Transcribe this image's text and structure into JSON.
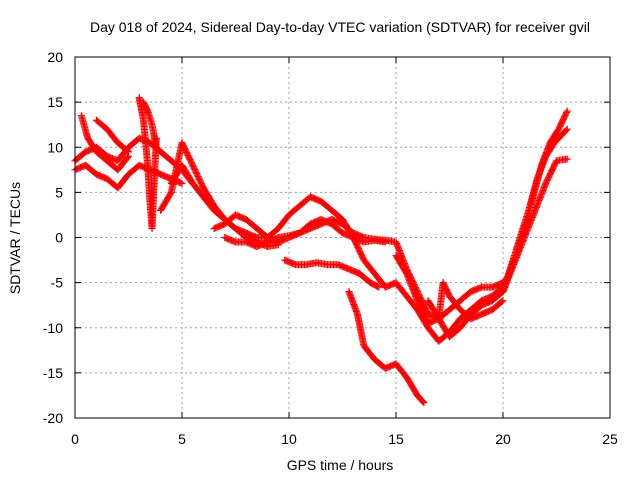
{
  "chart_data": {
    "type": "scatter",
    "title": "Day 018 of 2024, Sidereal Day-to-day VTEC variation (SDTVAR) for receiver gvil",
    "xlabel": "GPS time / hours",
    "ylabel": "SDTVAR / TECUs",
    "xlim": [
      0,
      25
    ],
    "ylim": [
      -20,
      20
    ],
    "xticks": [
      0,
      5,
      10,
      15,
      20,
      25
    ],
    "yticks": [
      -20,
      -15,
      -10,
      -5,
      0,
      5,
      10,
      15,
      20
    ],
    "grid": true,
    "marker": "+",
    "color": "#ff0000",
    "series": [
      {
        "x": [
          0.0,
          0.5,
          1.0,
          1.5,
          2.0,
          2.5,
          3.0,
          3.5,
          4.0,
          4.5,
          5.0,
          5.5
        ],
        "y": [
          8.5,
          9.5,
          10.0,
          9.0,
          8.5,
          10.0,
          11.0,
          10.5,
          9.5,
          8.5,
          7.5,
          6.0
        ]
      },
      {
        "x": [
          0.0,
          0.5,
          1.0,
          1.5,
          2.0,
          2.5,
          3.0,
          3.5,
          4.0,
          4.5,
          5.0
        ],
        "y": [
          7.5,
          8.0,
          7.0,
          6.5,
          5.5,
          7.0,
          8.0,
          7.5,
          7.0,
          6.5,
          6.0
        ]
      },
      {
        "x": [
          0.3,
          0.6,
          1.0,
          1.5,
          2.0,
          2.5
        ],
        "y": [
          13.5,
          11.0,
          9.5,
          8.5,
          7.5,
          9.0
        ]
      },
      {
        "x": [
          1.0,
          1.5,
          2.0,
          2.5
        ],
        "y": [
          13.0,
          12.0,
          10.5,
          9.5
        ]
      },
      {
        "x": [
          3.0,
          3.2,
          3.4,
          3.5,
          3.6,
          3.7,
          3.8
        ],
        "y": [
          15.5,
          13.0,
          8.0,
          4.0,
          1.0,
          6.0,
          11.0
        ]
      },
      {
        "x": [
          3.2,
          3.4,
          3.6,
          3.8
        ],
        "y": [
          15.0,
          14.0,
          12.5,
          10.0
        ]
      },
      {
        "x": [
          4.0,
          4.5,
          5.0,
          5.5,
          6.0,
          6.5,
          7.0,
          7.5,
          8.0,
          8.5,
          9.0,
          9.5
        ],
        "y": [
          3.0,
          5.0,
          10.5,
          8.0,
          5.5,
          3.5,
          2.0,
          1.0,
          0.0,
          -0.5,
          -1.0,
          -0.8
        ]
      },
      {
        "x": [
          4.5,
          5.0,
          5.5,
          6.0,
          6.5,
          7.0,
          7.5,
          8.0,
          8.5,
          9.0,
          9.5,
          10.0,
          10.5,
          11.0,
          11.5,
          12.0,
          12.5,
          13.0,
          13.5,
          14.0,
          14.5,
          15.0,
          15.5,
          16.0,
          16.5,
          17.0,
          17.5,
          18.0,
          18.5,
          19.0,
          19.5,
          20.0
        ],
        "y": [
          6.0,
          8.0,
          6.0,
          4.5,
          3.0,
          2.0,
          1.0,
          0.5,
          0.0,
          0.0,
          1.0,
          2.5,
          3.5,
          4.5,
          4.0,
          3.0,
          2.0,
          0.0,
          -2.5,
          -4.0,
          -5.5,
          -5.0,
          -6.5,
          -8.0,
          -10.0,
          -11.5,
          -10.5,
          -9.0,
          -8.0,
          -7.0,
          -6.5,
          -5.5
        ]
      },
      {
        "x": [
          6.5,
          7.0,
          7.5,
          8.0,
          8.5,
          9.0,
          9.5,
          10.0,
          10.5,
          11.0,
          11.5,
          12.0,
          12.5,
          13.0,
          13.5,
          14.0,
          14.5,
          15.0,
          15.5,
          16.0,
          16.5,
          17.0,
          17.5,
          18.0,
          18.5,
          19.0,
          19.5,
          20.0
        ],
        "y": [
          1.0,
          1.5,
          2.5,
          2.0,
          1.0,
          0.0,
          -0.5,
          0.0,
          0.5,
          1.0,
          1.5,
          2.0,
          1.5,
          0.5,
          0.0,
          -0.2,
          -0.3,
          -0.5,
          -3.5,
          -6.0,
          -8.5,
          -9.0,
          -8.0,
          -7.0,
          -6.0,
          -5.5,
          -5.5,
          -5.0
        ]
      },
      {
        "x": [
          7.0,
          7.5,
          8.0,
          8.5,
          9.0,
          9.5,
          10.0,
          10.5,
          11.0,
          11.5,
          12.0,
          12.5,
          13.0,
          13.5,
          14.0,
          14.5
        ],
        "y": [
          0.0,
          -0.5,
          -0.5,
          -1.0,
          -0.5,
          0.0,
          0.2,
          0.5,
          1.5,
          2.0,
          1.5,
          0.5,
          0.0,
          -0.5,
          -0.3,
          -0.5
        ]
      },
      {
        "x": [
          9.8,
          10.3,
          10.8,
          11.3,
          11.8,
          12.3,
          12.8,
          13.3,
          13.8,
          14.2
        ],
        "y": [
          -2.5,
          -3.0,
          -3.0,
          -2.8,
          -3.0,
          -3.0,
          -3.5,
          -4.0,
          -5.0,
          -5.5
        ]
      },
      {
        "x": [
          12.8,
          13.2,
          13.5,
          14.0,
          14.5,
          15.0,
          15.5,
          16.0,
          16.3
        ],
        "y": [
          -6.0,
          -8.5,
          -12.0,
          -13.5,
          -14.5,
          -14.0,
          -15.5,
          -17.5,
          -18.3
        ]
      },
      {
        "x": [
          15.0,
          15.5,
          16.0,
          16.5,
          17.0,
          17.2,
          17.5,
          18.0,
          18.5,
          19.0,
          19.5,
          20.0
        ],
        "y": [
          -2.0,
          -4.0,
          -7.0,
          -9.5,
          -9.0,
          -5.0,
          -6.5,
          -8.0,
          -9.0,
          -8.5,
          -8.0,
          -7.0
        ]
      },
      {
        "x": [
          16.5,
          17.0,
          17.5,
          18.0,
          18.5,
          19.0,
          19.5
        ],
        "y": [
          -7.0,
          -9.0,
          -11.0,
          -10.0,
          -8.5,
          -7.5,
          -7.0
        ]
      },
      {
        "x": [
          19.5,
          20.0,
          20.5,
          21.0,
          21.5,
          22.0,
          22.5,
          23.0
        ],
        "y": [
          -7.0,
          -6.0,
          -3.0,
          0.0,
          3.0,
          6.0,
          8.5,
          8.7
        ]
      },
      {
        "x": [
          19.8,
          20.2,
          20.6,
          21.0,
          21.4,
          21.8,
          22.2,
          22.6,
          23.0
        ],
        "y": [
          -5.5,
          -4.5,
          -2.0,
          1.0,
          4.5,
          8.0,
          10.5,
          12.0,
          14.0
        ]
      },
      {
        "x": [
          20.0,
          20.4,
          20.8,
          21.2,
          21.6,
          22.0,
          22.4,
          22.8,
          23.0
        ],
        "y": [
          -6.0,
          -3.0,
          0.0,
          3.0,
          6.5,
          9.0,
          10.5,
          11.5,
          12.0
        ]
      }
    ]
  }
}
